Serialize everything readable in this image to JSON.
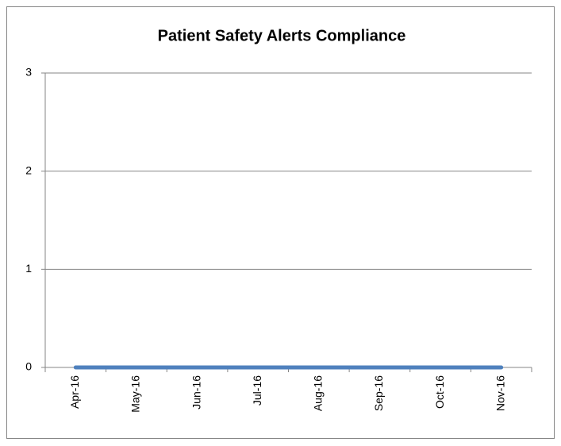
{
  "chart_data": {
    "type": "line",
    "title": "Patient Safety Alerts Compliance",
    "categories": [
      "Apr-16",
      "May-16",
      "Jun-16",
      "Jul-16",
      "Aug-16",
      "Sep-16",
      "Oct-16",
      "Nov-16"
    ],
    "values": [
      0,
      0,
      0,
      0,
      0,
      0,
      0,
      0
    ],
    "color": "#4f81bd",
    "ylim": [
      0,
      3
    ],
    "yticks": [
      0,
      1,
      2,
      3
    ],
    "grid": true
  }
}
